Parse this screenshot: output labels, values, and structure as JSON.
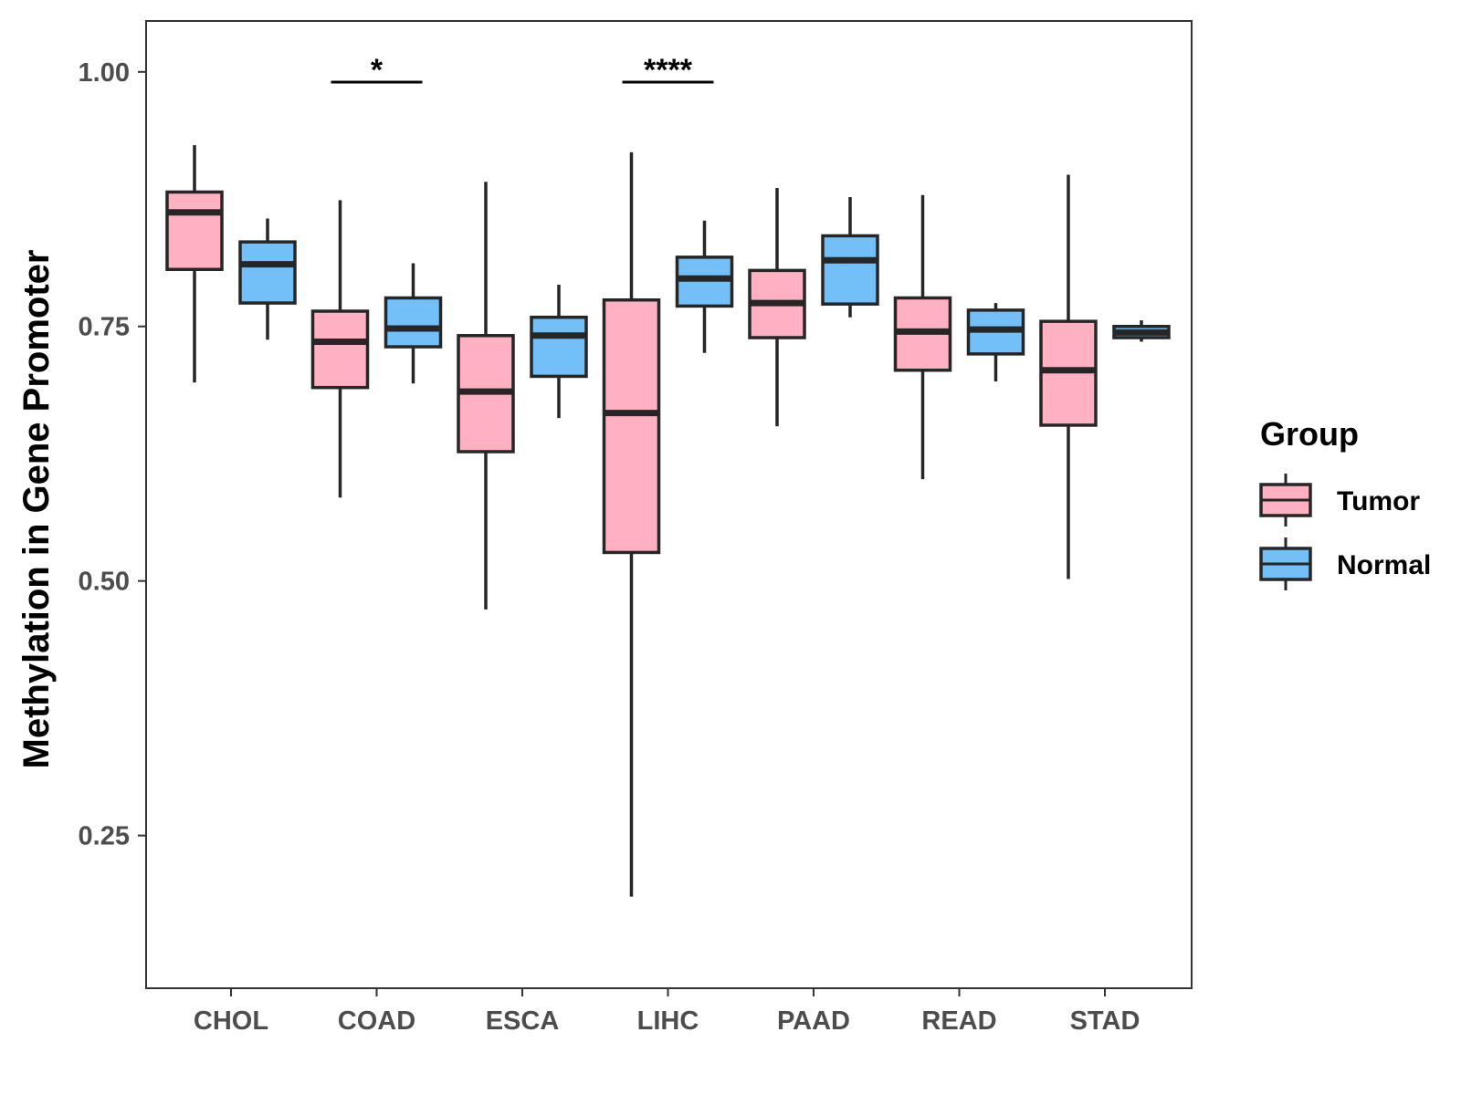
{
  "chart_data": {
    "type": "boxplot",
    "title": "",
    "xlabel": "",
    "ylabel": "Methylation in Gene Promoter",
    "ylim": [
      0.1,
      1.05
    ],
    "yticks": [
      0.25,
      0.5,
      0.75,
      1.0
    ],
    "ytick_labels": [
      "0.25",
      "0.50",
      "0.75",
      "1.00"
    ],
    "categories": [
      "CHOL",
      "COAD",
      "ESCA",
      "LIHC",
      "PAAD",
      "READ",
      "STAD"
    ],
    "legend": {
      "title": "Group",
      "position": "right",
      "entries": [
        {
          "name": "Tumor",
          "color": "#FFB0C1"
        },
        {
          "name": "Normal",
          "color": "#73BFF8"
        }
      ]
    },
    "series": [
      {
        "name": "Tumor",
        "color": "#FFB0C1",
        "boxes": [
          {
            "category": "CHOL",
            "whisker_low": 0.695,
            "q1": 0.806,
            "median": 0.862,
            "q3": 0.882,
            "whisker_high": 0.928
          },
          {
            "category": "COAD",
            "whisker_low": 0.582,
            "q1": 0.69,
            "median": 0.735,
            "q3": 0.765,
            "whisker_high": 0.874
          },
          {
            "category": "ESCA",
            "whisker_low": 0.472,
            "q1": 0.627,
            "median": 0.686,
            "q3": 0.741,
            "whisker_high": 0.892
          },
          {
            "category": "LIHC",
            "whisker_low": 0.19,
            "q1": 0.528,
            "median": 0.665,
            "q3": 0.776,
            "whisker_high": 0.921
          },
          {
            "category": "PAAD",
            "whisker_low": 0.652,
            "q1": 0.739,
            "median": 0.773,
            "q3": 0.805,
            "whisker_high": 0.886
          },
          {
            "category": "READ",
            "whisker_low": 0.6,
            "q1": 0.707,
            "median": 0.745,
            "q3": 0.778,
            "whisker_high": 0.879
          },
          {
            "category": "STAD",
            "whisker_low": 0.502,
            "q1": 0.653,
            "median": 0.707,
            "q3": 0.755,
            "whisker_high": 0.899
          }
        ]
      },
      {
        "name": "Normal",
        "color": "#73BFF8",
        "boxes": [
          {
            "category": "CHOL",
            "whisker_low": 0.737,
            "q1": 0.773,
            "median": 0.811,
            "q3": 0.833,
            "whisker_high": 0.856
          },
          {
            "category": "COAD",
            "whisker_low": 0.694,
            "q1": 0.73,
            "median": 0.748,
            "q3": 0.778,
            "whisker_high": 0.812
          },
          {
            "category": "ESCA",
            "whisker_low": 0.66,
            "q1": 0.701,
            "median": 0.741,
            "q3": 0.759,
            "whisker_high": 0.791
          },
          {
            "category": "LIHC",
            "whisker_low": 0.724,
            "q1": 0.77,
            "median": 0.797,
            "q3": 0.818,
            "whisker_high": 0.854
          },
          {
            "category": "PAAD",
            "whisker_low": 0.759,
            "q1": 0.772,
            "median": 0.815,
            "q3": 0.839,
            "whisker_high": 0.877
          },
          {
            "category": "READ",
            "whisker_low": 0.696,
            "q1": 0.723,
            "median": 0.747,
            "q3": 0.766,
            "whisker_high": 0.773
          },
          {
            "category": "STAD",
            "whisker_low": 0.735,
            "q1": 0.739,
            "median": 0.744,
            "q3": 0.75,
            "whisker_high": 0.756
          }
        ]
      }
    ],
    "annotations": [
      {
        "category": "COAD",
        "label": "*",
        "y": 0.99
      },
      {
        "category": "LIHC",
        "label": "****",
        "y": 0.99
      }
    ],
    "grid": false
  }
}
